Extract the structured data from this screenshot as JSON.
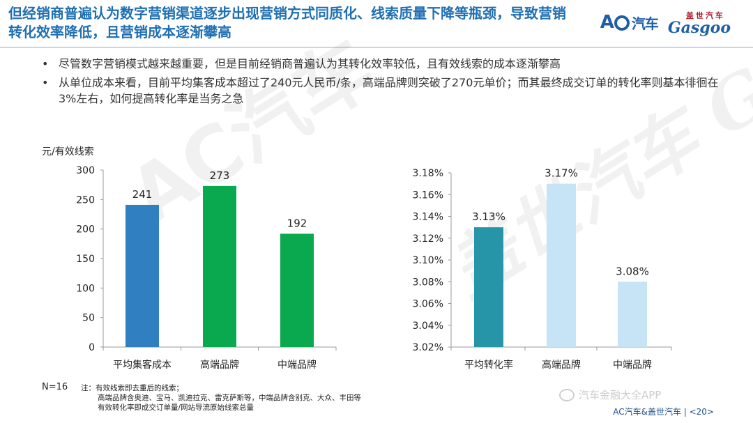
{
  "header": {
    "title": "但经销商普遍认为数字营销渠道逐步出现营销方式同质化、线索质量下降等瓶颈，导致营销转化效率降低，且营销成本逐渐攀高",
    "logo_ac": "AC",
    "logo_ac_cn": "汽车",
    "logo_gasgoo_cn": "盖世汽车",
    "logo_gasgoo_en": "Gasgoo"
  },
  "bullets": [
    "尽管数字营销模式越来越重要，但是目前经销商普遍认为其转化效率较低，且有效线索的成本逐渐攀高",
    "从单位成本来看，目前平均集客成本超过了240元人民币/条，高端品牌则突破了270元单价；而其最终成交订单的转化率则基本徘徊在3%左右，如何提高转化率是当务之急"
  ],
  "colors": {
    "title_blue": "#1f6fb2",
    "bar_blue": "#2f7fc1",
    "bar_green": "#0aa84f",
    "bar_teal": "#2795a8",
    "bar_lightblue": "#c7e3f6"
  },
  "chart_data": [
    {
      "type": "bar",
      "ylabel": "元/有效线索",
      "categories": [
        "平均集客成本",
        "高端品牌",
        "中端品牌"
      ],
      "values": [
        241,
        273,
        192
      ],
      "value_labels": [
        "241",
        "273",
        "192"
      ],
      "bar_colors": [
        "#2f7fc1",
        "#0aa84f",
        "#0aa84f"
      ],
      "ylim": [
        0,
        300
      ],
      "yticks": [
        0,
        50,
        100,
        150,
        200,
        250,
        300
      ],
      "ytick_labels": [
        "0",
        "50",
        "100",
        "150",
        "200",
        "250",
        "300"
      ],
      "grid": false
    },
    {
      "type": "bar",
      "categories": [
        "平均转化率",
        "高端品牌",
        "中端品牌"
      ],
      "values": [
        3.13,
        3.17,
        3.08
      ],
      "value_labels": [
        "3.13%",
        "3.17%",
        "3.08%"
      ],
      "bar_colors": [
        "#2795a8",
        "#c7e3f6",
        "#c7e3f6"
      ],
      "ylim": [
        3.02,
        3.18
      ],
      "yticks": [
        3.02,
        3.04,
        3.06,
        3.08,
        3.1,
        3.12,
        3.14,
        3.16,
        3.18
      ],
      "ytick_labels": [
        "3.02%",
        "3.04%",
        "3.06%",
        "3.08%",
        "3.10%",
        "3.12%",
        "3.14%",
        "3.16%",
        "3.18%"
      ],
      "grid": false
    }
  ],
  "notes": {
    "n": "N=16",
    "lines": [
      "注：有效线索即去重后的线索；",
      "高端品牌含奥迪、宝马、凯迪拉克、雷克萨斯等，中端品牌含别克、大众、丰田等",
      "有效转化率即成交订单量/网站导流原始线索总量"
    ]
  },
  "watermarks": {
    "left": "AC汽车",
    "right": "盖世汽车 Gasgoo"
  },
  "wechat": "汽车金融大全APP",
  "footer": "AC汽车&盖世汽车 | <20>"
}
